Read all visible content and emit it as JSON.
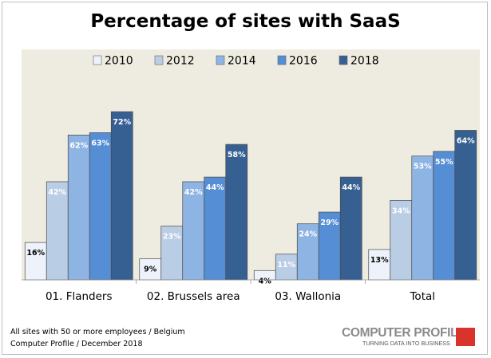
{
  "chart_data": {
    "type": "bar",
    "title": "Percentage of sites with SaaS",
    "categories": [
      "01. Flanders",
      "02. Brussels area",
      "03. Wallonia",
      "Total"
    ],
    "series": [
      {
        "name": "2010",
        "values": [
          16,
          9,
          4,
          13
        ],
        "color": "#eef3fb"
      },
      {
        "name": "2012",
        "values": [
          42,
          23,
          11,
          34
        ],
        "color": "#b9cde5"
      },
      {
        "name": "2014",
        "values": [
          62,
          42,
          24,
          53
        ],
        "color": "#8eb4e3"
      },
      {
        "name": "2016",
        "values": [
          63,
          44,
          29,
          55
        ],
        "color": "#558ed5"
      },
      {
        "name": "2018",
        "values": [
          72,
          58,
          44,
          64
        ],
        "color": "#376092"
      }
    ],
    "value_suffix": "%",
    "ylim": [
      0,
      100
    ],
    "grid": false,
    "legend_position": "top",
    "plot_background": "#eeebe0"
  },
  "footer": {
    "line1": "All sites with 50 or more employees / Belgium",
    "line2": "Computer Profile / December 2018"
  },
  "logo": {
    "name": "COMPUTER PROFILE",
    "tagline": "TURNING DATA INTO BUSINESS",
    "color": "#d9342b"
  }
}
